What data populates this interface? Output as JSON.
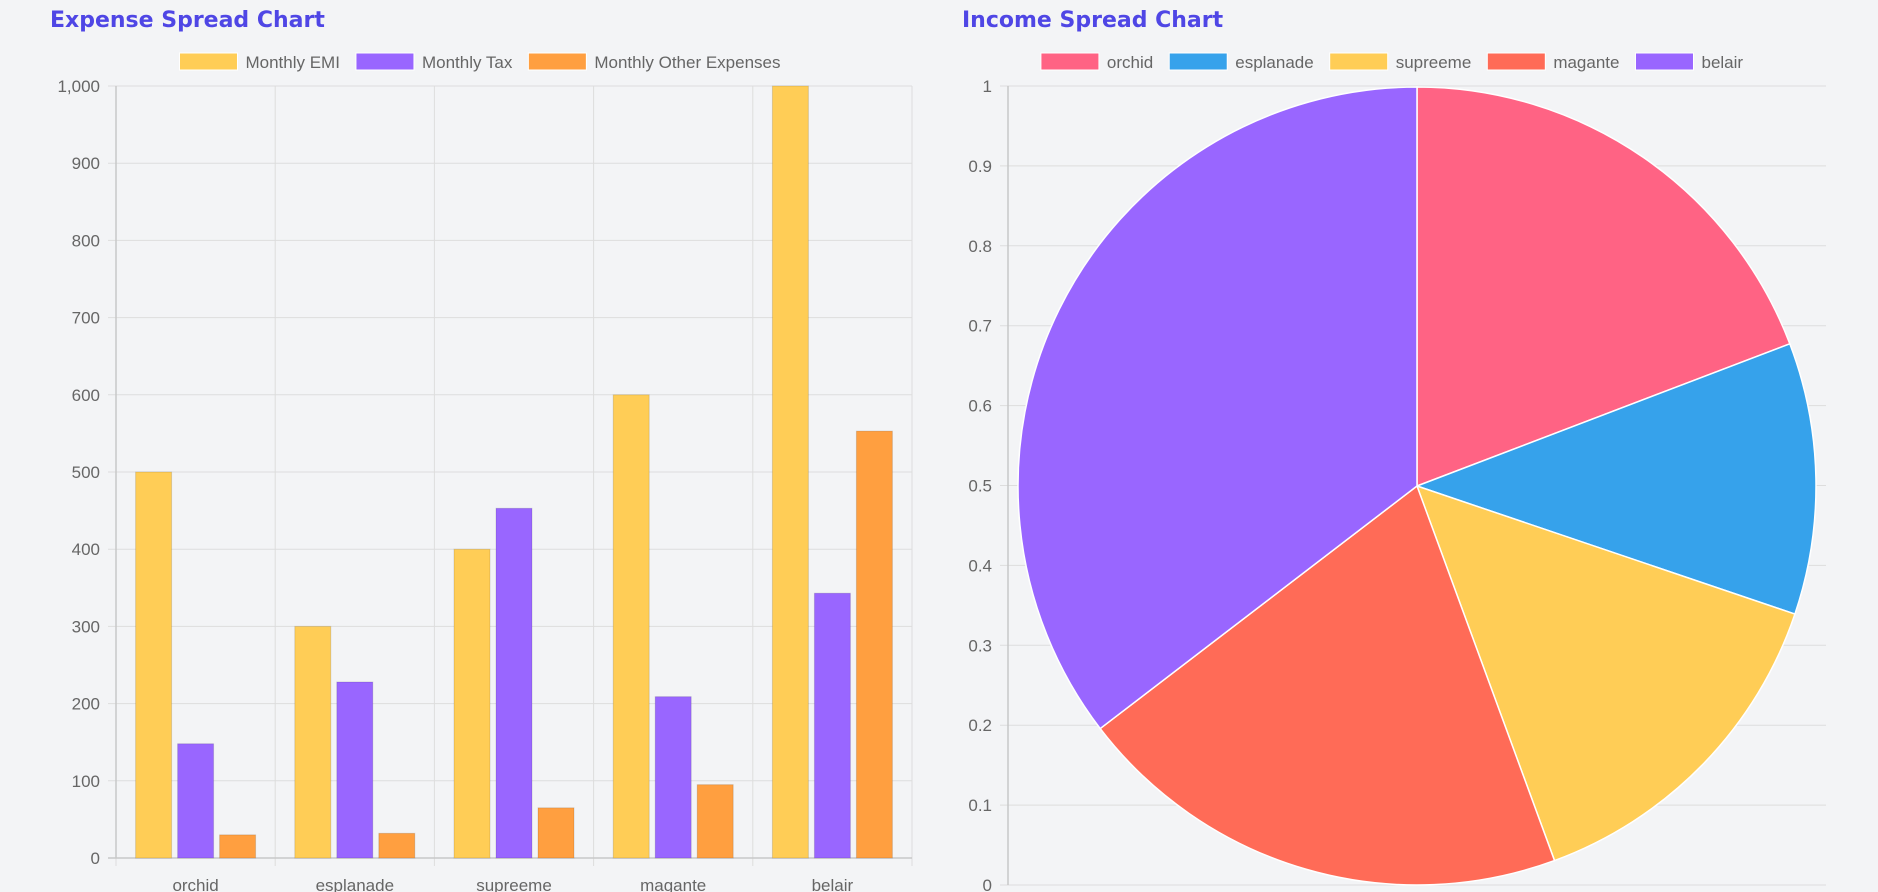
{
  "chart_data": [
    {
      "type": "bar",
      "title": "Expense Spread Chart",
      "categories": [
        "orchid",
        "esplanade",
        "supreeme",
        "magante",
        "belair"
      ],
      "series": [
        {
          "name": "Monthly EMI",
          "values": [
            500,
            300,
            400,
            600,
            1000
          ],
          "color": "#ffcd56"
        },
        {
          "name": "Monthly Tax",
          "values": [
            148,
            228,
            453,
            209,
            343
          ],
          "color": "#9966ff"
        },
        {
          "name": "Monthly Other Expenses",
          "values": [
            30,
            32,
            65,
            95,
            553
          ],
          "color": "#ff9f40"
        }
      ],
      "ylim": [
        0,
        1000
      ],
      "yticks": [
        "0",
        "100",
        "200",
        "300",
        "400",
        "500",
        "600",
        "700",
        "800",
        "900",
        "1,000"
      ],
      "xlabel": "",
      "ylabel": "",
      "grid": true,
      "legend": "top"
    },
    {
      "type": "pie",
      "title": "Income Spread Chart",
      "labels": [
        "orchid",
        "esplanade",
        "supreeme",
        "magante",
        "belair"
      ],
      "values": [
        19.2,
        11.0,
        14.2,
        20.2,
        35.4
      ],
      "colors": [
        "#ff6384",
        "#36a2eb",
        "#ffcd56",
        "#ff6b57",
        "#9966ff"
      ],
      "ylim": [
        0,
        1
      ],
      "yticks": [
        "0",
        "0.1",
        "0.2",
        "0.3",
        "0.4",
        "0.5",
        "0.6",
        "0.7",
        "0.8",
        "0.9",
        "1"
      ],
      "grid": true,
      "legend": "top"
    }
  ]
}
